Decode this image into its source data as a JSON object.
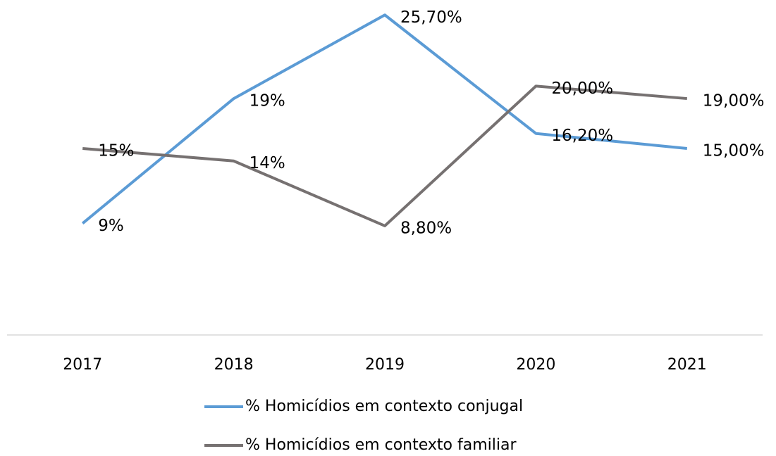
{
  "chart_data": {
    "type": "line",
    "categories": [
      "2017",
      "2018",
      "2019",
      "2020",
      "2021"
    ],
    "series": [
      {
        "name": "% Homicídios em contexto conjugal",
        "color": "#5b9bd5",
        "values": [
          9,
          19,
          25.7,
          16.2,
          15
        ],
        "value_labels": [
          "9%",
          "19%",
          "25,70%",
          "16,20%",
          "15,00%"
        ]
      },
      {
        "name": "% Homicídios em contexto familiar",
        "color": "#767171",
        "values": [
          15,
          14,
          8.8,
          20,
          19
        ],
        "value_labels": [
          "15%",
          "14%",
          "8,80%",
          "20,00%",
          "19,00%"
        ]
      }
    ],
    "ylim": [
      0,
      30
    ]
  }
}
